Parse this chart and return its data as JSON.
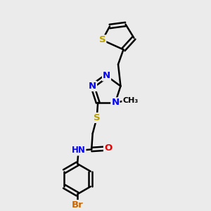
{
  "bg_color": "#ebebeb",
  "bond_color": "#000000",
  "bond_width": 1.8,
  "atom_colors": {
    "S": "#b8a000",
    "N": "#0000ee",
    "O": "#ee0000",
    "Br": "#cc6600",
    "C": "#000000",
    "H": "#404040"
  },
  "font_size": 9.5
}
